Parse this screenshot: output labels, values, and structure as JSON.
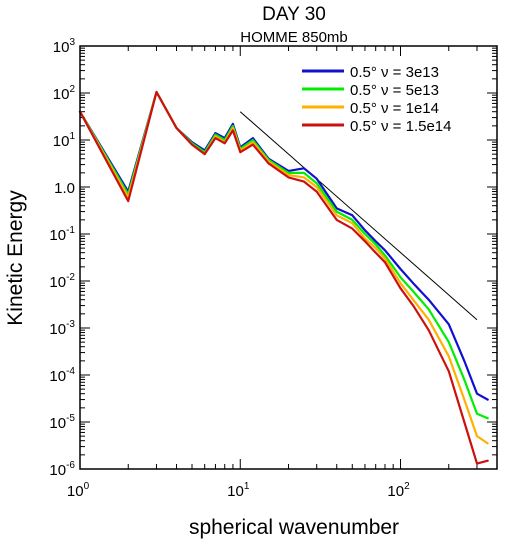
{
  "chart_data": {
    "type": "line",
    "title": "DAY 30",
    "subtitle": "HOMME  850mb",
    "xlabel": "spherical wavenumber",
    "ylabel": "Kinetic Energy",
    "xscale": "log",
    "yscale": "log",
    "xlim": [
      1,
      400
    ],
    "ylim": [
      1e-06,
      1000
    ],
    "x_ticks": [
      {
        "base": "10",
        "exp": "0",
        "value": 1
      },
      {
        "base": "10",
        "exp": "1",
        "value": 10
      },
      {
        "base": "10",
        "exp": "2",
        "value": 100
      }
    ],
    "y_ticks": [
      {
        "base": "10",
        "exp": "-6",
        "value": 1e-06
      },
      {
        "base": "10",
        "exp": "-5",
        "value": 1e-05
      },
      {
        "base": "10",
        "exp": "-4",
        "value": 0.0001
      },
      {
        "base": "10",
        "exp": "-3",
        "value": 0.001
      },
      {
        "base": "10",
        "exp": "-2",
        "value": 0.01
      },
      {
        "base": "10",
        "exp": "-1",
        "value": 0.1
      },
      {
        "base": "",
        "exp": "",
        "label": "1.0",
        "value": 1
      },
      {
        "base": "10",
        "exp": "1",
        "value": 10
      },
      {
        "base": "10",
        "exp": "2",
        "value": 100
      },
      {
        "base": "10",
        "exp": "3",
        "value": 1000
      }
    ],
    "legend_placement": "top-right",
    "grid": false,
    "reference_line": {
      "x": [
        10,
        300
      ],
      "y": [
        40,
        0.0015
      ]
    },
    "series": [
      {
        "name": "0.5°  ν = 3e13",
        "color": "#1010d0",
        "x": [
          1,
          2,
          3,
          4,
          5,
          6,
          7,
          8,
          9,
          10,
          12,
          15,
          20,
          25,
          30,
          40,
          50,
          60,
          70,
          80,
          100,
          120,
          150,
          200,
          250,
          300,
          350
        ],
        "y": [
          40,
          0.8,
          105,
          18,
          9,
          6,
          14,
          11,
          22,
          7,
          11,
          4,
          2.2,
          2.5,
          1.5,
          0.35,
          0.25,
          0.12,
          0.07,
          0.045,
          0.018,
          0.009,
          0.004,
          0.0012,
          0.0002,
          4e-05,
          3e-05
        ]
      },
      {
        "name": "0.5°  ν = 5e13",
        "color": "#00ee00",
        "x": [
          1,
          2,
          3,
          4,
          5,
          6,
          7,
          8,
          9,
          10,
          12,
          15,
          20,
          25,
          30,
          40,
          50,
          60,
          70,
          80,
          100,
          120,
          150,
          200,
          250,
          300,
          350
        ],
        "y": [
          40,
          0.7,
          105,
          18,
          8.5,
          5.5,
          13,
          10,
          20,
          6.5,
          10,
          3.8,
          2.0,
          2.0,
          1.2,
          0.3,
          0.2,
          0.1,
          0.06,
          0.035,
          0.012,
          0.006,
          0.0025,
          0.0005,
          8e-05,
          1.5e-05,
          1.2e-05
        ]
      },
      {
        "name": "0.5°  ν = 1e14",
        "color": "#ffb000",
        "x": [
          1,
          2,
          3,
          4,
          5,
          6,
          7,
          8,
          9,
          10,
          12,
          15,
          20,
          25,
          30,
          40,
          50,
          60,
          70,
          80,
          100,
          120,
          150,
          200,
          250,
          300,
          350
        ],
        "y": [
          40,
          0.6,
          105,
          18,
          8,
          5,
          12,
          9,
          18,
          6,
          9,
          3.5,
          1.8,
          1.6,
          1.0,
          0.25,
          0.17,
          0.08,
          0.05,
          0.03,
          0.009,
          0.004,
          0.0015,
          0.00025,
          3e-05,
          5e-06,
          3.5e-06
        ]
      },
      {
        "name": "0.5°  ν = 1.5e14",
        "color": "#cc1010",
        "x": [
          1,
          2,
          3,
          4,
          5,
          6,
          7,
          8,
          9,
          10,
          12,
          15,
          20,
          25,
          30,
          40,
          50,
          60,
          70,
          80,
          100,
          120,
          150,
          200,
          250,
          300,
          350
        ],
        "y": [
          40,
          0.5,
          105,
          18,
          8,
          5,
          11,
          8.5,
          16,
          5.5,
          8,
          3.2,
          1.6,
          1.3,
          0.8,
          0.2,
          0.13,
          0.07,
          0.04,
          0.025,
          0.007,
          0.003,
          0.0009,
          0.00012,
          1e-05,
          1.3e-06,
          1.5e-06
        ]
      }
    ]
  }
}
